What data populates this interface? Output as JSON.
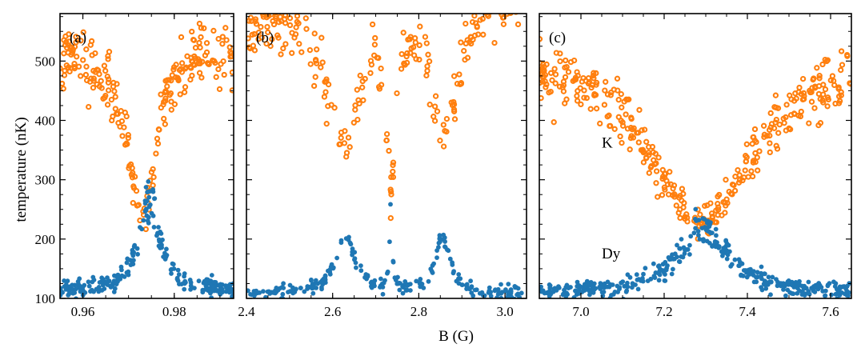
{
  "chart_data": {
    "type": "scatter",
    "shared_ylabel": "temperature (nK)",
    "shared_xlabel": "B (G)",
    "ylim": [
      100,
      580
    ],
    "yticks": [
      100,
      200,
      300,
      400,
      500
    ],
    "colors": {
      "K": "#ff7f0e",
      "Dy": "#1f77b4"
    },
    "legend": {
      "K": "K",
      "Dy": "Dy"
    },
    "panels": [
      {
        "label": "(a)",
        "xlim": [
          0.955,
          0.993
        ],
        "xticks": [
          0.96,
          0.98
        ],
        "tick_labels": [
          "0.96",
          "0.98"
        ],
        "seed": 11,
        "series": [
          {
            "name": "K",
            "min": 0.973,
            "width": 0.0035,
            "floor": 235,
            "wing": 520,
            "wing_slope": 0,
            "count": 230,
            "scatter": 22,
            "mode": "lorentz"
          },
          {
            "name": "Dy",
            "min": 0.9745,
            "width": 0.0028,
            "floor": 112,
            "peak": 265,
            "count": 240,
            "scatter": 10,
            "mode": "peak"
          }
        ]
      },
      {
        "label": "(b)",
        "xlim": [
          2.4,
          3.05
        ],
        "xticks": [
          2.4,
          2.6,
          2.8,
          3.0
        ],
        "tick_labels": [
          "2.4",
          "2.6",
          "2.8",
          "3.0"
        ],
        "seed": 29,
        "series": [
          {
            "name": "K",
            "features": [
              {
                "center": 2.625,
                "width": 0.045,
                "depth": 0.62
              },
              {
                "center": 2.735,
                "width": 0.012,
                "depth": 0.85
              },
              {
                "center": 2.86,
                "width": 0.035,
                "depth": 0.62
              }
            ],
            "base": 520,
            "count": 250,
            "scatter": 22,
            "mode": "multi"
          },
          {
            "name": "Dy",
            "peaks": [
              {
                "center": 2.63,
                "width": 0.028,
                "height": 95
              },
              {
                "center": 2.735,
                "width": 0.004,
                "height": 135
              },
              {
                "center": 2.855,
                "width": 0.02,
                "height": 95
              }
            ],
            "floor": 108,
            "count": 250,
            "scatter": 6,
            "mode": "multipeak"
          }
        ]
      },
      {
        "label": "(c)",
        "xlim": [
          6.9,
          7.65
        ],
        "xticks": [
          7.0,
          7.2,
          7.4,
          7.6
        ],
        "tick_labels": [
          "7.0",
          "7.2",
          "7.4",
          "7.6"
        ],
        "seed": 47,
        "series": [
          {
            "name": "K",
            "min": 7.29,
            "width": 0.16,
            "floor": 235,
            "wing": 520,
            "wing_slope": 0,
            "count": 360,
            "scatter": 22,
            "mode": "lorentz",
            "series_label": "K"
          },
          {
            "name": "Dy",
            "min": 7.295,
            "width": 0.075,
            "floor": 108,
            "peak": 215,
            "count": 380,
            "scatter": 8,
            "mode": "peak",
            "series_label": "Dy"
          }
        ]
      }
    ]
  }
}
